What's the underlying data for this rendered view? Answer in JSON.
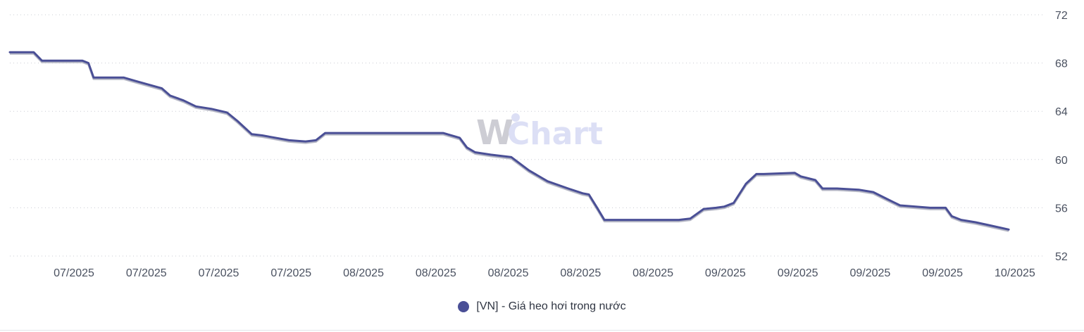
{
  "brand": {
    "watermark_w": "W",
    "watermark_text": "Chart"
  },
  "colors": {
    "series": "#4a4f96",
    "series_shadow": "#b4b6c4",
    "grid": "#c9ccd3",
    "tick_text": "#4a5160",
    "watermark": "#d9dcf5"
  },
  "chart_data": {
    "type": "line",
    "title": "",
    "xlabel": "",
    "ylabel": "",
    "y_axis_position": "right",
    "ylim": [
      52,
      72
    ],
    "yticks": [
      52,
      56,
      60,
      64,
      68,
      72
    ],
    "grid": true,
    "legend_position": "bottom-center",
    "x_range": [
      0,
      100
    ],
    "x_ticks": [
      {
        "x": 6.2,
        "label": "07/2025"
      },
      {
        "x": 13.2,
        "label": "07/2025"
      },
      {
        "x": 20.2,
        "label": "07/2025"
      },
      {
        "x": 27.2,
        "label": "07/2025"
      },
      {
        "x": 34.2,
        "label": "08/2025"
      },
      {
        "x": 41.2,
        "label": "08/2025"
      },
      {
        "x": 48.2,
        "label": "08/2025"
      },
      {
        "x": 55.2,
        "label": "08/2025"
      },
      {
        "x": 62.2,
        "label": "08/2025"
      },
      {
        "x": 69.2,
        "label": "09/2025"
      },
      {
        "x": 76.2,
        "label": "09/2025"
      },
      {
        "x": 83.2,
        "label": "09/2025"
      },
      {
        "x": 90.2,
        "label": "09/2025"
      },
      {
        "x": 97.2,
        "label": "10/2025"
      }
    ],
    "series": [
      {
        "name": "[VN] - Giá heo hơi trong nước",
        "x": [
          0,
          2.3,
          3.1,
          7.0,
          7.6,
          8.1,
          8.7,
          11.0,
          12.2,
          14.7,
          15.5,
          16.8,
          18.0,
          19.5,
          21.0,
          22.0,
          23.4,
          24.4,
          27.0,
          28.6,
          29.6,
          30.5,
          31.6,
          32.6,
          41.9,
          43.1,
          43.5,
          44.2,
          45.0,
          46.5,
          48.5,
          50.2,
          52.0,
          54.0,
          55.4,
          56.0,
          56.8,
          57.5,
          58.3,
          59.8,
          64.7,
          65.8,
          67.1,
          68.3,
          69.1,
          70.0,
          71.2,
          72.2,
          72.9,
          75.9,
          76.5,
          77.9,
          78.6,
          80.0,
          82.1,
          83.5,
          84.9,
          86.1,
          89.0,
          90.5,
          91.1,
          92.0,
          93.4,
          95.0,
          96.6
        ],
        "values": [
          68.9,
          68.9,
          68.2,
          68.2,
          68.0,
          66.8,
          66.8,
          66.8,
          66.5,
          65.9,
          65.3,
          64.9,
          64.4,
          64.2,
          63.9,
          63.2,
          62.1,
          62.0,
          61.6,
          61.5,
          61.6,
          62.2,
          62.2,
          62.2,
          62.2,
          61.9,
          61.8,
          61.0,
          60.6,
          60.4,
          60.2,
          59.1,
          58.2,
          57.6,
          57.2,
          57.1,
          56.0,
          55.0,
          55.0,
          55.0,
          55.0,
          55.1,
          55.9,
          56.0,
          56.1,
          56.4,
          58.0,
          58.8,
          58.8,
          58.9,
          58.6,
          58.3,
          57.6,
          57.6,
          57.5,
          57.3,
          56.7,
          56.2,
          56.0,
          56.0,
          55.3,
          55.0,
          54.8,
          54.5,
          54.2
        ]
      }
    ]
  }
}
